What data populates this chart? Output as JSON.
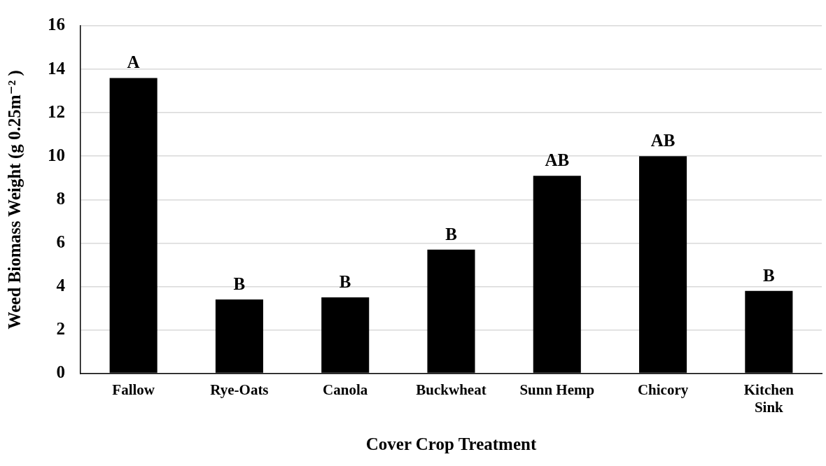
{
  "chart_data": {
    "type": "bar",
    "xlabel": "Cover Crop Treatment",
    "ylabel": "Weed Biomass Weight (g 0.25m⁻² )",
    "categories": [
      "Fallow",
      "Rye-Oats",
      "Canola",
      "Buckwheat",
      "Sunn Hemp",
      "Chicory",
      "Kitchen Sink"
    ],
    "values": [
      13.6,
      3.4,
      3.5,
      5.7,
      9.1,
      10.0,
      3.8
    ],
    "color": "#000000",
    "ylim": [
      0,
      16
    ],
    "yticks": [
      0,
      2,
      4,
      6,
      8,
      10,
      12,
      14,
      16
    ],
    "grid": "y",
    "legend": false,
    "annotations": [
      {
        "text": "A",
        "x": "Fallow",
        "y": 13.6
      },
      {
        "text": "B",
        "x": "Rye-Oats",
        "y": 3.4
      },
      {
        "text": "B",
        "x": "Canola",
        "y": 3.5
      },
      {
        "text": "B",
        "x": "Buckwheat",
        "y": 5.7
      },
      {
        "text": "AB",
        "x": "Sunn Hemp",
        "y": 9.1
      },
      {
        "text": "AB",
        "x": "Chicory",
        "y": 10.0
      },
      {
        "text": "B",
        "x": "Kitchen Sink",
        "y": 3.8
      }
    ]
  }
}
